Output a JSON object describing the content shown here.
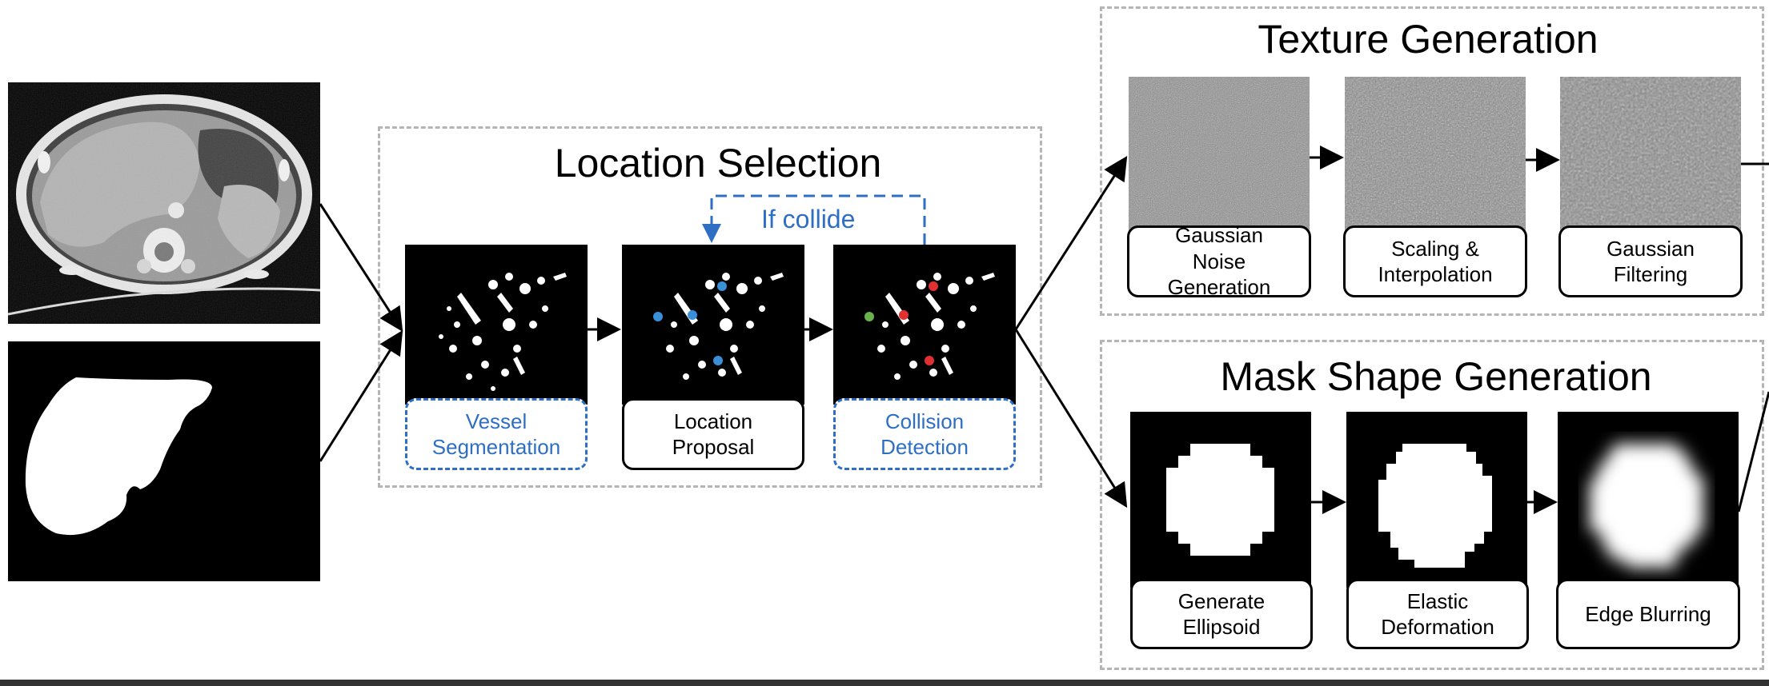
{
  "location_selection": {
    "title": "Location Selection",
    "loop_label": "If collide",
    "steps": [
      {
        "label": "Vessel\nSegmentation",
        "style": "dashed-blue"
      },
      {
        "label": "Location\nProposal",
        "style": "solid"
      },
      {
        "label": "Collision\nDetection",
        "style": "dashed-blue"
      }
    ]
  },
  "texture_generation": {
    "title": "Texture Generation",
    "steps": [
      {
        "label": "Gaussian\nNoise\nGeneration"
      },
      {
        "label": "Scaling &\nInterpolation"
      },
      {
        "label": "Gaussian\nFiltering"
      }
    ]
  },
  "mask_shape_generation": {
    "title": "Mask Shape Generation",
    "steps": [
      {
        "label": "Generate\nEllipsoid"
      },
      {
        "label": "Elastic\nDeformation"
      },
      {
        "label": "Edge Blurring"
      }
    ]
  },
  "colors": {
    "accent_blue": "#2e6fc4",
    "panel_border": "#b5b5b5",
    "point_blue": "#3a8fd9",
    "point_red": "#e03030",
    "point_green": "#6ab04c"
  }
}
